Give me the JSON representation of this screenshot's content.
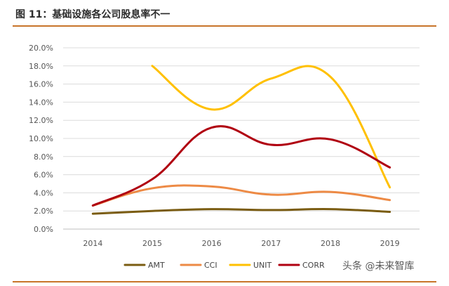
{
  "figure": {
    "title": "图 11：基础设施各公司股息率不一",
    "watermark": "头条 @未来智库"
  },
  "chart_data": {
    "type": "line",
    "title": "",
    "xlabel": "",
    "ylabel": "",
    "categories": [
      "2014",
      "2015",
      "2016",
      "2017",
      "2018",
      "2019"
    ],
    "ylim": [
      0,
      20
    ],
    "yticks": [
      "0.0%",
      "2.0%",
      "4.0%",
      "6.0%",
      "8.0%",
      "10.0%",
      "12.0%",
      "14.0%",
      "16.0%",
      "18.0%",
      "20.0%"
    ],
    "grid": true,
    "legend": "bottom",
    "series": [
      {
        "name": "AMT",
        "color": "#7a5c12",
        "values": [
          1.7,
          2.0,
          2.2,
          2.1,
          2.2,
          1.9
        ]
      },
      {
        "name": "CCI",
        "color": "#ed8a45",
        "values": [
          2.6,
          4.5,
          4.7,
          3.8,
          4.1,
          3.2
        ]
      },
      {
        "name": "UNIT",
        "color": "#ffc000",
        "values": [
          null,
          18.0,
          13.2,
          16.6,
          16.8,
          4.6
        ]
      },
      {
        "name": "CORR",
        "color": "#b00010",
        "values": [
          2.6,
          5.5,
          11.2,
          9.3,
          9.9,
          6.8
        ]
      }
    ]
  }
}
